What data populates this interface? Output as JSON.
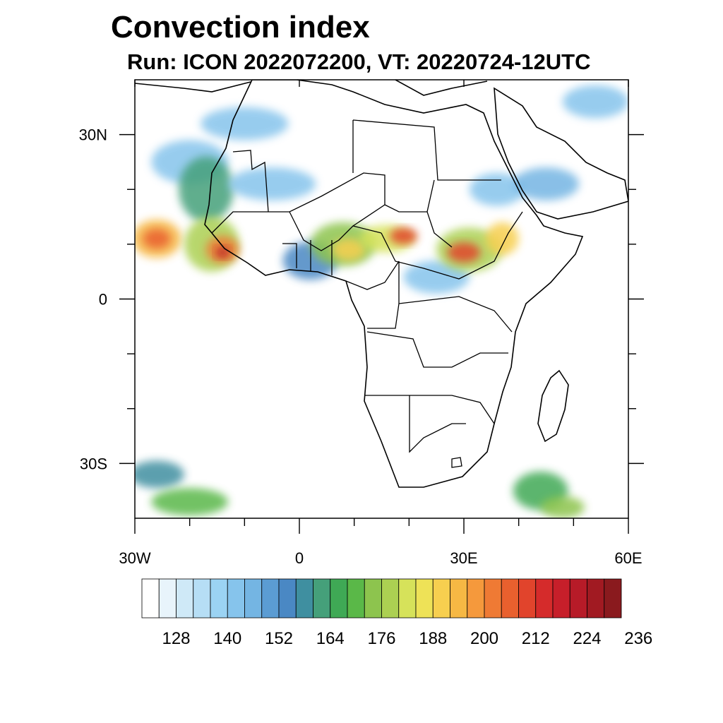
{
  "title": "Convection index",
  "subtitle": "Run: ICON 2022072200,  VT: 20220724-12UTC",
  "map": {
    "lon_range": [
      -30,
      60
    ],
    "lat_range": [
      -40,
      40
    ],
    "x_ticks": [
      {
        "lon": -30,
        "label": "30W"
      },
      {
        "lon": 0,
        "label": "0"
      },
      {
        "lon": 30,
        "label": "30E"
      },
      {
        "lon": 60,
        "label": "60E"
      }
    ],
    "y_ticks": [
      {
        "lat": 30,
        "label": "30N"
      },
      {
        "lat": 0,
        "label": "0"
      },
      {
        "lat": -30,
        "label": "30S"
      }
    ],
    "minor_lon_ticks": [
      -20,
      -10,
      10,
      20,
      40,
      50
    ],
    "minor_lat_ticks": [
      20,
      10,
      -10,
      -20
    ]
  },
  "colorbar": {
    "colors": [
      "#ffffff",
      "#e8f4fb",
      "#cfe9f7",
      "#b6def5",
      "#9bd3f3",
      "#86c4ec",
      "#74b5e3",
      "#5b9cd3",
      "#4a88c4",
      "#3f8fa0",
      "#45a07a",
      "#3fa955",
      "#5ab848",
      "#8dc44e",
      "#acd052",
      "#d6e25a",
      "#eee257",
      "#f7cf4f",
      "#f6b844",
      "#f5993c",
      "#ef7a34",
      "#e9602e",
      "#e1442c",
      "#d52b2b",
      "#c71f2a",
      "#b71b28",
      "#a11a22",
      "#8a1a1e"
    ],
    "labels": [
      "128",
      "140",
      "152",
      "164",
      "176",
      "188",
      "200",
      "212",
      "224",
      "236"
    ]
  },
  "fields": [
    {
      "lon": -26,
      "lat": 11,
      "rx": 4.5,
      "ry": 3.5,
      "level": 18
    },
    {
      "lon": -26,
      "lat": 11,
      "rx": 2.5,
      "ry": 1.8,
      "level": 21
    },
    {
      "lon": -20,
      "lat": 25,
      "rx": 7,
      "ry": 4,
      "level": 5
    },
    {
      "lon": -17,
      "lat": 20,
      "rx": 5,
      "ry": 6,
      "level": 10
    },
    {
      "lon": -16,
      "lat": 10,
      "rx": 5,
      "ry": 5,
      "level": 14
    },
    {
      "lon": -14,
      "lat": 9,
      "rx": 3,
      "ry": 2.5,
      "level": 20
    },
    {
      "lon": -14,
      "lat": 8.5,
      "rx": 1.2,
      "ry": 1,
      "level": 25
    },
    {
      "lon": -10,
      "lat": 32,
      "rx": 8,
      "ry": 3,
      "level": 5
    },
    {
      "lon": -5,
      "lat": 21,
      "rx": 8,
      "ry": 3,
      "level": 5
    },
    {
      "lon": 2,
      "lat": 7,
      "rx": 5,
      "ry": 3.5,
      "level": 8
    },
    {
      "lon": 8,
      "lat": 10,
      "rx": 6,
      "ry": 4,
      "level": 13
    },
    {
      "lon": 9,
      "lat": 9,
      "rx": 3,
      "ry": 2,
      "level": 17
    },
    {
      "lon": 16,
      "lat": 11,
      "rx": 5,
      "ry": 2.5,
      "level": 15
    },
    {
      "lon": 19,
      "lat": 11.5,
      "rx": 2.5,
      "ry": 1.5,
      "level": 22
    },
    {
      "lon": 25,
      "lat": 4,
      "rx": 6,
      "ry": 3,
      "level": 5
    },
    {
      "lon": 31,
      "lat": 9,
      "rx": 6,
      "ry": 4,
      "level": 14
    },
    {
      "lon": 30,
      "lat": 8.5,
      "rx": 3,
      "ry": 1.8,
      "level": 22
    },
    {
      "lon": 37,
      "lat": 11,
      "rx": 3,
      "ry": 3,
      "level": 17
    },
    {
      "lon": 36,
      "lat": 20,
      "rx": 5,
      "ry": 3,
      "level": 5
    },
    {
      "lon": 45,
      "lat": 21,
      "rx": 6,
      "ry": 3,
      "level": 6
    },
    {
      "lon": 54,
      "lat": 36,
      "rx": 6,
      "ry": 3,
      "level": 5
    },
    {
      "lon": -26,
      "lat": -32,
      "rx": 5,
      "ry": 2.5,
      "level": 9
    },
    {
      "lon": -20,
      "lat": -37,
      "rx": 7,
      "ry": 2.5,
      "level": 12
    },
    {
      "lon": 44,
      "lat": -35,
      "rx": 5,
      "ry": 3.5,
      "level": 11
    },
    {
      "lon": 48,
      "lat": -38,
      "rx": 4,
      "ry": 2,
      "level": 13
    }
  ]
}
